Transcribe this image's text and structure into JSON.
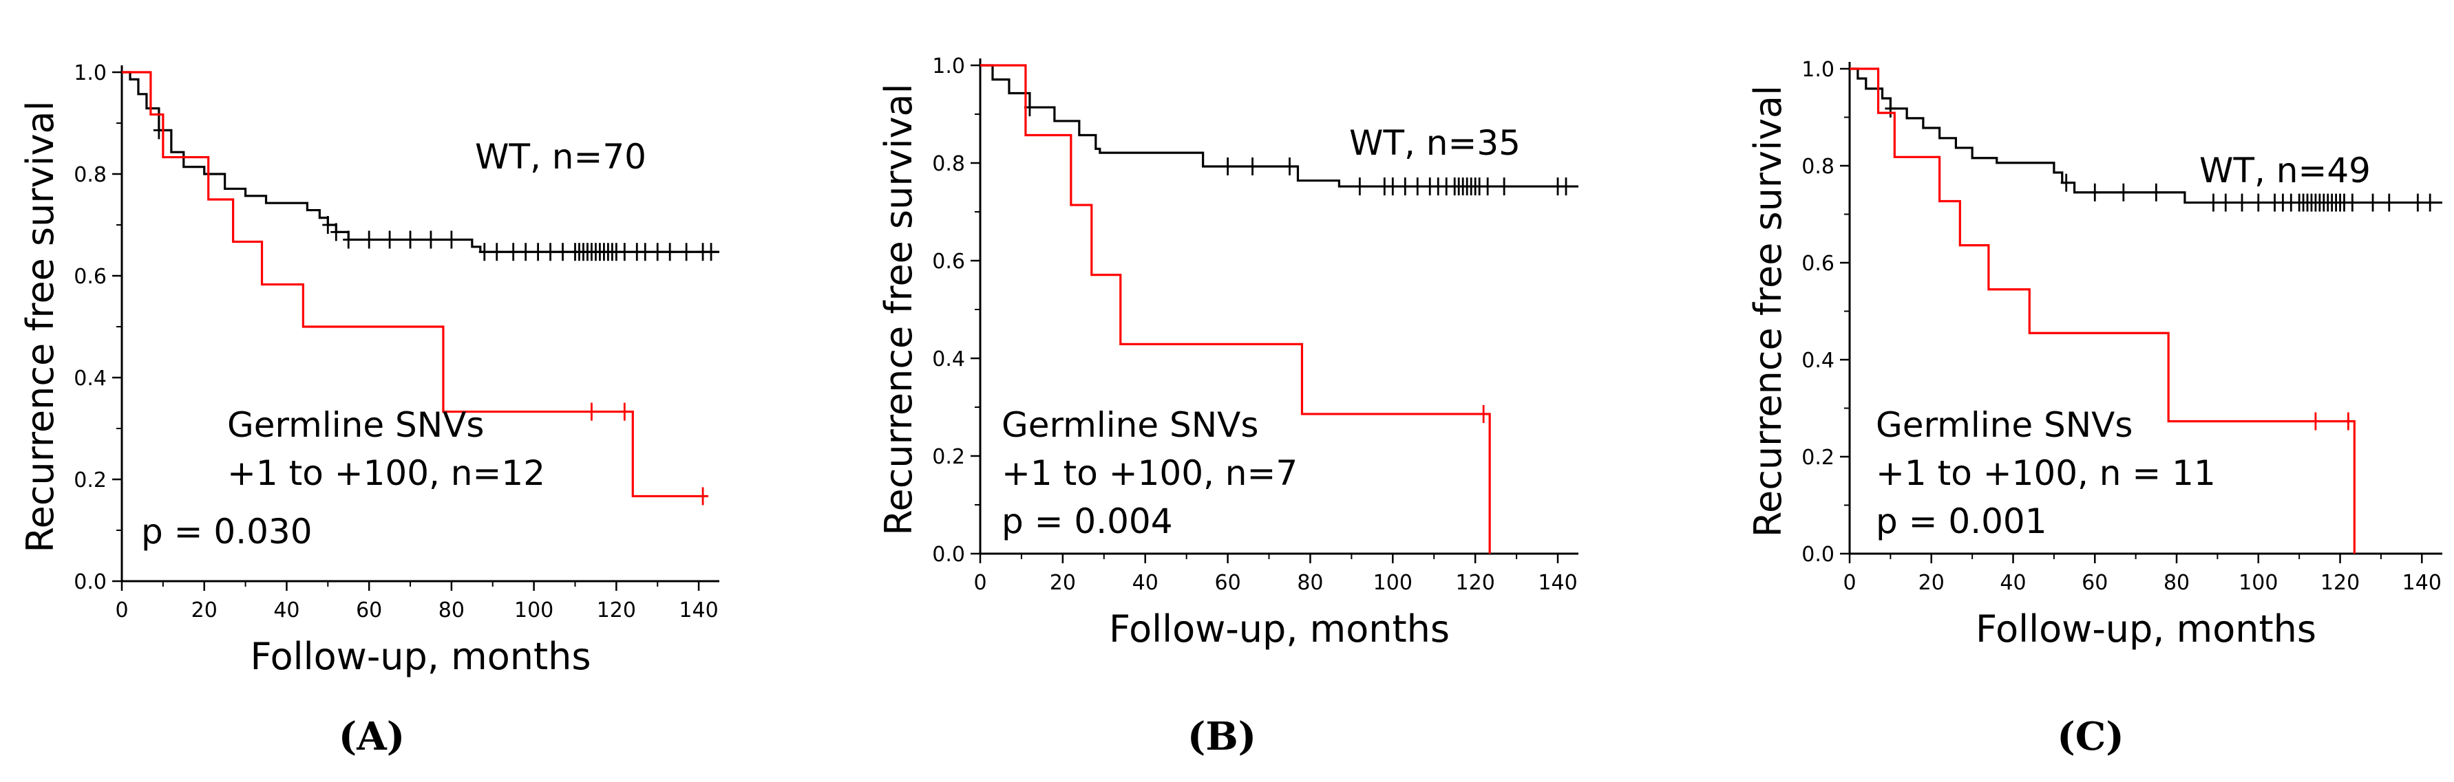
{
  "chart_data": [
    {
      "type": "line",
      "panel": "A",
      "panel_label": "(A)",
      "xlabel": "Follow-up,  months",
      "ylabel": "Recurrence free survival",
      "xlim": [
        0,
        145
      ],
      "ylim": [
        0,
        1.0
      ],
      "xticks": [
        0,
        20,
        40,
        60,
        80,
        100,
        120,
        140
      ],
      "yticks": [
        0.0,
        0.2,
        0.4,
        0.6,
        0.8,
        1.0
      ],
      "ytick_labels": [
        "0.0",
        "0.2",
        "0.4",
        "0.6",
        "0.8",
        "1.0"
      ],
      "series": [
        {
          "name": "WT, n=70",
          "color": "#000000",
          "steps": [
            [
              0,
              1.0
            ],
            [
              2,
              0.986
            ],
            [
              4,
              0.957
            ],
            [
              6,
              0.929
            ],
            [
              9,
              0.886
            ],
            [
              12,
              0.843
            ],
            [
              15,
              0.814
            ],
            [
              20,
              0.8
            ],
            [
              25,
              0.771
            ],
            [
              30,
              0.757
            ],
            [
              35,
              0.743
            ],
            [
              45,
              0.729
            ],
            [
              48,
              0.714
            ],
            [
              50,
              0.7
            ],
            [
              52,
              0.686
            ],
            [
              55,
              0.671
            ],
            [
              85,
              0.657
            ],
            [
              87,
              0.647
            ],
            [
              145,
              0.647
            ]
          ],
          "censored": [
            [
              9,
              0.886
            ],
            [
              50,
              0.7
            ],
            [
              52,
              0.686
            ],
            [
              55,
              0.671
            ],
            [
              60,
              0.671
            ],
            [
              65,
              0.671
            ],
            [
              70,
              0.671
            ],
            [
              75,
              0.671
            ],
            [
              80,
              0.671
            ],
            [
              88,
              0.647
            ],
            [
              91,
              0.647
            ],
            [
              95,
              0.647
            ],
            [
              98,
              0.647
            ],
            [
              101,
              0.647
            ],
            [
              104,
              0.647
            ],
            [
              107,
              0.647
            ],
            [
              110,
              0.647
            ],
            [
              111,
              0.647
            ],
            [
              112,
              0.647
            ],
            [
              113,
              0.647
            ],
            [
              114,
              0.647
            ],
            [
              115,
              0.647
            ],
            [
              116,
              0.647
            ],
            [
              117,
              0.647
            ],
            [
              118,
              0.647
            ],
            [
              119,
              0.647
            ],
            [
              120,
              0.647
            ],
            [
              122,
              0.647
            ],
            [
              125,
              0.647
            ],
            [
              127,
              0.647
            ],
            [
              130,
              0.647
            ],
            [
              133,
              0.647
            ],
            [
              137,
              0.647
            ],
            [
              141,
              0.647
            ],
            [
              143,
              0.647
            ]
          ]
        },
        {
          "name": "Germline SNVs +1 to +100, n=12",
          "color": "#ff0000",
          "steps": [
            [
              0,
              1.0
            ],
            [
              7,
              0.917
            ],
            [
              10,
              0.833
            ],
            [
              18,
              0.833
            ],
            [
              21,
              0.75
            ],
            [
              27,
              0.667
            ],
            [
              34,
              0.583
            ],
            [
              44,
              0.5
            ],
            [
              77,
              0.5
            ],
            [
              78,
              0.333
            ],
            [
              123,
              0.333
            ],
            [
              124,
              0.167
            ],
            [
              142,
              0.167
            ]
          ],
          "censored": [
            [
              114,
              0.333
            ],
            [
              122,
              0.333
            ],
            [
              141,
              0.167
            ]
          ]
        }
      ],
      "annotations": {
        "wt_label": "WT, n=70",
        "germline_line1": "Germline SNVs",
        "germline_line2": "+1 to +100, n=12",
        "p_value": "p = 0.030"
      }
    },
    {
      "type": "line",
      "panel": "B",
      "panel_label": "(B)",
      "xlabel": "Follow-up,  months",
      "ylabel": "Recurrence free survival",
      "xlim": [
        0,
        145
      ],
      "ylim": [
        0,
        1.0
      ],
      "xticks": [
        0,
        20,
        40,
        60,
        80,
        100,
        120,
        140
      ],
      "yticks": [
        0.0,
        0.2,
        0.4,
        0.6,
        0.8,
        1.0
      ],
      "ytick_labels": [
        "0.0",
        "0.2",
        "0.4",
        "0.6",
        "0.8",
        "1.0"
      ],
      "series": [
        {
          "name": "WT, n=35",
          "color": "#000000",
          "steps": [
            [
              0,
              1.0
            ],
            [
              3,
              0.971
            ],
            [
              7,
              0.943
            ],
            [
              12,
              0.914
            ],
            [
              18,
              0.886
            ],
            [
              24,
              0.857
            ],
            [
              28,
              0.829
            ],
            [
              29,
              0.821
            ],
            [
              53,
              0.821
            ],
            [
              54,
              0.793
            ],
            [
              76,
              0.793
            ],
            [
              77,
              0.764
            ],
            [
              87,
              0.752
            ],
            [
              145,
              0.752
            ]
          ],
          "censored": [
            [
              12,
              0.914
            ],
            [
              60,
              0.793
            ],
            [
              66,
              0.793
            ],
            [
              75,
              0.793
            ],
            [
              92,
              0.752
            ],
            [
              98,
              0.752
            ],
            [
              100,
              0.752
            ],
            [
              103,
              0.752
            ],
            [
              106,
              0.752
            ],
            [
              109,
              0.752
            ],
            [
              111,
              0.752
            ],
            [
              113,
              0.752
            ],
            [
              115,
              0.752
            ],
            [
              116,
              0.752
            ],
            [
              117,
              0.752
            ],
            [
              118,
              0.752
            ],
            [
              119,
              0.752
            ],
            [
              120,
              0.752
            ],
            [
              121,
              0.752
            ],
            [
              123,
              0.752
            ],
            [
              127,
              0.752
            ],
            [
              140,
              0.752
            ],
            [
              142,
              0.752
            ]
          ]
        },
        {
          "name": "Germline SNVs +1 to +100, n=7",
          "color": "#ff0000",
          "steps": [
            [
              0,
              1.0
            ],
            [
              11,
              0.857
            ],
            [
              22,
              0.714
            ],
            [
              27,
              0.571
            ],
            [
              34,
              0.429
            ],
            [
              77,
              0.429
            ],
            [
              78,
              0.286
            ],
            [
              123,
              0.286
            ],
            [
              123.5,
              0.0
            ]
          ],
          "censored": [
            [
              122,
              0.286
            ]
          ]
        }
      ],
      "annotations": {
        "wt_label": "WT, n=35",
        "germline_line1": "Germline SNVs",
        "germline_line2": "+1 to +100, n=7",
        "p_value": "p = 0.004"
      }
    },
    {
      "type": "line",
      "panel": "C",
      "panel_label": "(C)",
      "xlabel": "Follow-up,  months",
      "ylabel": "Recurrence free survival",
      "xlim": [
        0,
        145
      ],
      "ylim": [
        0,
        1.0
      ],
      "xticks": [
        0,
        20,
        40,
        60,
        80,
        100,
        120,
        140
      ],
      "yticks": [
        0.0,
        0.2,
        0.4,
        0.6,
        0.8,
        1.0
      ],
      "ytick_labels": [
        "0.0",
        "0.2",
        "0.4",
        "0.6",
        "0.8",
        "1.0"
      ],
      "series": [
        {
          "name": "WT, n=49",
          "color": "#000000",
          "steps": [
            [
              0,
              1.0
            ],
            [
              2,
              0.98
            ],
            [
              4,
              0.959
            ],
            [
              8,
              0.939
            ],
            [
              10,
              0.918
            ],
            [
              14,
              0.898
            ],
            [
              18,
              0.878
            ],
            [
              22,
              0.857
            ],
            [
              26,
              0.837
            ],
            [
              30,
              0.816
            ],
            [
              36,
              0.806
            ],
            [
              48,
              0.806
            ],
            [
              50,
              0.786
            ],
            [
              52,
              0.765
            ],
            [
              55,
              0.745
            ],
            [
              80,
              0.745
            ],
            [
              82,
              0.724
            ],
            [
              145,
              0.724
            ]
          ],
          "censored": [
            [
              10,
              0.918
            ],
            [
              53,
              0.765
            ],
            [
              60,
              0.745
            ],
            [
              67,
              0.745
            ],
            [
              75,
              0.745
            ],
            [
              89,
              0.724
            ],
            [
              92,
              0.724
            ],
            [
              96,
              0.724
            ],
            [
              100,
              0.724
            ],
            [
              104,
              0.724
            ],
            [
              106,
              0.724
            ],
            [
              108,
              0.724
            ],
            [
              110,
              0.724
            ],
            [
              111,
              0.724
            ],
            [
              112,
              0.724
            ],
            [
              113,
              0.724
            ],
            [
              114,
              0.724
            ],
            [
              115,
              0.724
            ],
            [
              116,
              0.724
            ],
            [
              117,
              0.724
            ],
            [
              118,
              0.724
            ],
            [
              119,
              0.724
            ],
            [
              120,
              0.724
            ],
            [
              121,
              0.724
            ],
            [
              123,
              0.724
            ],
            [
              128,
              0.724
            ],
            [
              132,
              0.724
            ],
            [
              139,
              0.724
            ],
            [
              142,
              0.724
            ]
          ]
        },
        {
          "name": "Germline SNVs +1 to +100, n = 11",
          "color": "#ff0000",
          "steps": [
            [
              0,
              1.0
            ],
            [
              7,
              0.909
            ],
            [
              11,
              0.818
            ],
            [
              22,
              0.727
            ],
            [
              27,
              0.636
            ],
            [
              34,
              0.545
            ],
            [
              44,
              0.455
            ],
            [
              77,
              0.455
            ],
            [
              78,
              0.273
            ],
            [
              123,
              0.273
            ],
            [
              123.5,
              0.0
            ]
          ],
          "censored": [
            [
              114,
              0.273
            ],
            [
              122,
              0.273
            ]
          ]
        }
      ],
      "annotations": {
        "wt_label": "WT, n=49",
        "germline_line1": "Germline SNVs",
        "germline_line2": "+1 to +100, n = 11",
        "p_value": "p = 0.001"
      }
    }
  ]
}
